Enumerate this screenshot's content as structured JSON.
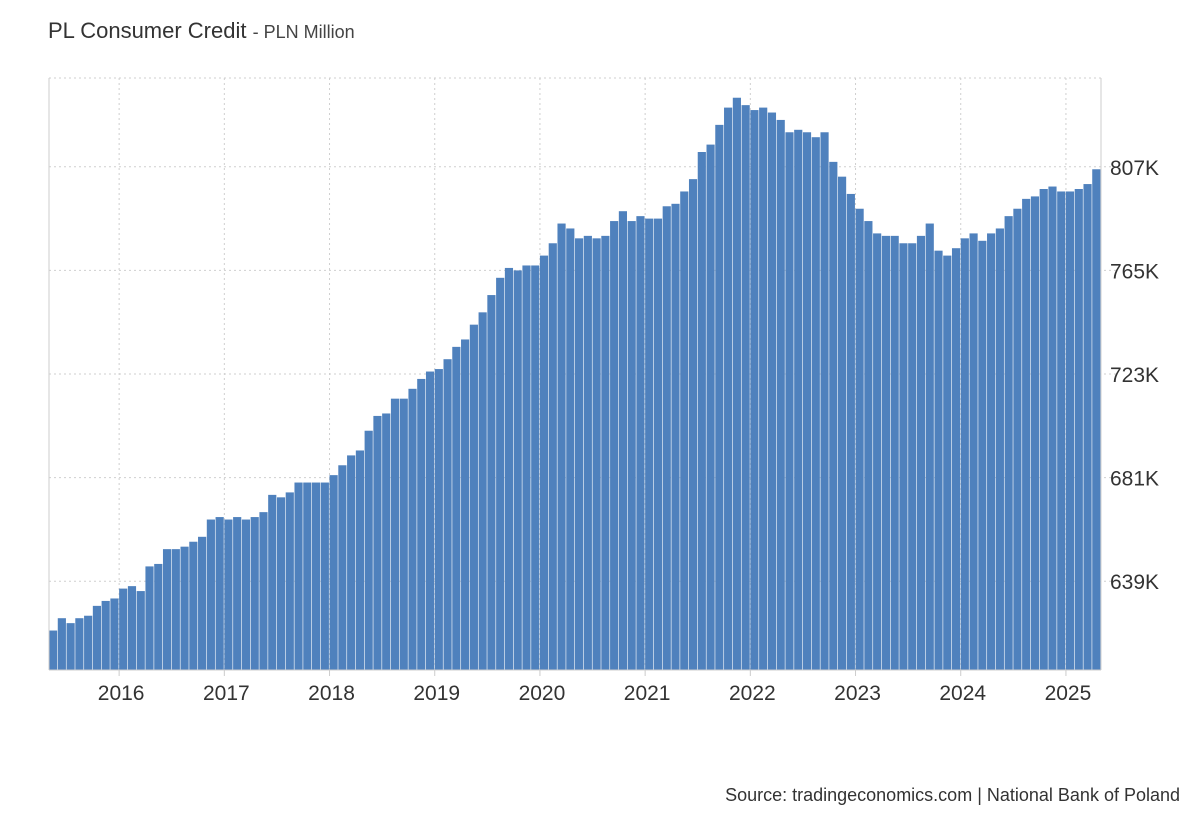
{
  "header": {
    "title": "PL Consumer Credit",
    "subtitle": "- PLN Million"
  },
  "footer": {
    "source": "Source: tradingeconomics.com | National Bank of Poland"
  },
  "colors": {
    "bar": "#4f81bd",
    "grid": "#cfcfcf",
    "axis": "#cccccc",
    "text": "#333333"
  },
  "chart_data": {
    "type": "bar",
    "title": "PL Consumer Credit",
    "subtitle": "- PLN Million",
    "ylim": [
      603000,
      843000
    ],
    "y_ticks": [
      639000,
      681000,
      723000,
      765000,
      807000
    ],
    "y_tick_labels": [
      "639K",
      "681K",
      "723K",
      "765K",
      "807K"
    ],
    "y_axis_side": "right",
    "x_tick_labels": [
      "2016",
      "2017",
      "2018",
      "2019",
      "2020",
      "2021",
      "2022",
      "2023",
      "2024",
      "2025"
    ],
    "x_start": "2015-05",
    "x_end": "2025-05",
    "grid": true,
    "series": [
      {
        "values": [
          619000,
          624000,
          622000,
          624000,
          625000,
          629000,
          631000,
          632000,
          636000,
          637000,
          635000,
          645000,
          646000,
          652000,
          652000,
          653000,
          655000,
          657000,
          664000,
          665000,
          664000,
          665000,
          664000,
          665000,
          667000,
          674000,
          673000,
          675000,
          679000,
          679000,
          679000,
          679000,
          682000,
          686000,
          690000,
          692000,
          700000,
          706000,
          707000,
          713000,
          713000,
          717000,
          721000,
          724000,
          725000,
          729000,
          734000,
          737000,
          743000,
          748000,
          755000,
          762000,
          766000,
          765000,
          767000,
          767000,
          771000,
          776000,
          784000,
          782000,
          778000,
          779000,
          778000,
          779000,
          785000,
          789000,
          785000,
          787000,
          786000,
          786000,
          791000,
          792000,
          797000,
          802000,
          813000,
          816000,
          824000,
          831000,
          835000,
          832000,
          830000,
          831000,
          829000,
          826000,
          821000,
          822000,
          821000,
          819000,
          821000,
          809000,
          803000,
          796000,
          790000,
          785000,
          780000,
          779000,
          779000,
          776000,
          776000,
          779000,
          784000,
          773000,
          771000,
          774000,
          778000,
          780000,
          777000,
          780000,
          782000,
          787000,
          790000,
          794000,
          795000,
          798000,
          799000,
          797000,
          797000,
          798000,
          800000,
          806000
        ]
      }
    ]
  }
}
